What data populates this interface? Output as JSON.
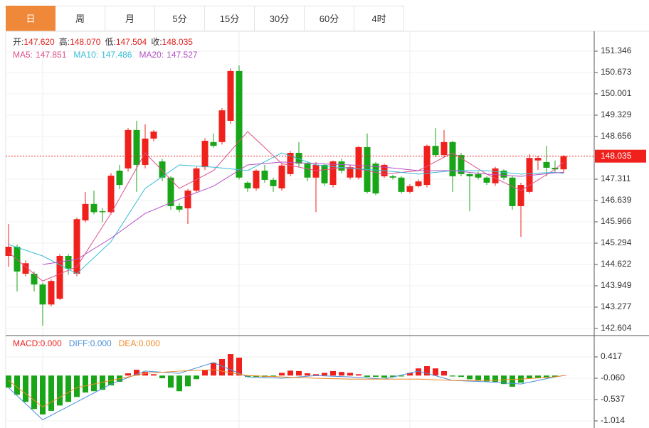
{
  "tabs": [
    "日",
    "周",
    "月",
    "5分",
    "15分",
    "30分",
    "60分",
    "4时"
  ],
  "chart_data": [
    {
      "type": "candlestick",
      "ylim": [
        142.38,
        151.95
      ],
      "yticks": [
        151.346,
        150.673,
        150.001,
        149.329,
        148.656,
        147.311,
        146.639,
        145.966,
        145.294,
        144.622,
        143.949,
        143.277,
        142.604
      ],
      "up_color": "#f0201c",
      "down_color": "#18a518",
      "readout": [
        {
          "name": "开:",
          "value": 147.62,
          "label": "147.620"
        },
        {
          "name": "高:",
          "value": 148.07,
          "label": "148.070"
        },
        {
          "name": "低:",
          "value": 147.504,
          "label": "147.504"
        },
        {
          "name": "收:",
          "value": 148.035,
          "label": "148.035"
        }
      ],
      "last_price": {
        "value": 148.035,
        "label": "148.035",
        "color": "#f0201c"
      },
      "open": [
        144.89,
        145.18,
        144.33,
        144.33,
        143.99,
        143.36,
        143.54,
        144.89,
        144.33,
        146.01,
        146.53,
        146.3,
        146.27,
        147.58,
        147.65,
        148.86,
        147.76,
        148.59,
        147.87,
        147.36,
        146.46,
        146.39,
        146.95,
        147.69,
        148.48,
        148.48,
        149.15,
        150.72,
        147.2,
        147.02,
        147.58,
        147.29,
        147.02,
        147.47,
        148.14,
        147.8,
        147.36,
        147.76,
        147.13,
        147.87,
        147.36,
        147.36,
        148.32,
        147.8,
        147.4,
        147.4,
        147.36,
        146.91,
        147.09,
        147.13,
        148.36,
        148.07,
        148.48,
        148.07,
        147.47,
        147.47,
        147.36,
        147.18,
        147.58,
        147.36,
        146.46,
        146.91,
        147.9,
        147.85,
        147.67,
        147.62
      ],
      "high": [
        145.9,
        145.25,
        144.75,
        144.4,
        144.05,
        144.15,
        144.95,
        144.95,
        146.1,
        146.91,
        146.95,
        146.4,
        147.5,
        147.76,
        148.92,
        149.15,
        149.04,
        148.86,
        147.95,
        147.4,
        146.55,
        147.0,
        147.7,
        148.6,
        148.75,
        149.55,
        150.8,
        150.9,
        147.25,
        147.62,
        147.76,
        147.36,
        147.8,
        148.2,
        148.48,
        147.85,
        147.85,
        147.8,
        147.9,
        147.95,
        147.75,
        148.36,
        148.75,
        147.85,
        147.8,
        147.45,
        147.4,
        147.15,
        147.3,
        148.4,
        148.92,
        148.86,
        148.52,
        148.14,
        147.5,
        147.55,
        147.4,
        147.7,
        147.62,
        147.4,
        147.2,
        148.1,
        148.05,
        148.36,
        147.9,
        148.07
      ],
      "low": [
        144.55,
        143.77,
        144.25,
        143.77,
        142.69,
        143.3,
        143.5,
        144.3,
        144.25,
        145.95,
        146.2,
        145.95,
        146.2,
        147.0,
        147.55,
        146.91,
        147.65,
        148.5,
        147.25,
        146.35,
        146.27,
        145.9,
        146.9,
        147.6,
        148.3,
        148.4,
        149.05,
        147.3,
        146.91,
        146.95,
        147.2,
        146.91,
        146.95,
        147.4,
        147.7,
        147.25,
        146.27,
        147.1,
        147.05,
        147.5,
        147.3,
        147.3,
        146.86,
        146.8,
        147.35,
        147.3,
        146.86,
        146.86,
        147.05,
        147.05,
        148.0,
        148.0,
        146.91,
        147.4,
        146.3,
        147.3,
        147.13,
        147.1,
        147.29,
        146.35,
        145.49,
        146.86,
        147.6,
        147.4,
        147.55,
        147.504
      ],
      "close": [
        145.18,
        144.4,
        144.66,
        143.99,
        143.36,
        144.1,
        144.89,
        144.49,
        146.05,
        146.53,
        146.27,
        146.27,
        147.42,
        147.13,
        148.86,
        147.76,
        148.59,
        148.81,
        147.36,
        146.46,
        146.35,
        146.95,
        147.65,
        148.52,
        148.36,
        149.48,
        150.72,
        147.36,
        147.02,
        147.58,
        147.29,
        147.09,
        147.74,
        148.14,
        147.8,
        147.36,
        147.76,
        147.18,
        147.87,
        147.58,
        147.69,
        148.32,
        146.91,
        146.86,
        147.76,
        147.36,
        146.91,
        147.09,
        147.24,
        148.36,
        148.07,
        148.48,
        147.4,
        147.47,
        147.4,
        147.36,
        147.2,
        147.65,
        147.36,
        146.46,
        147.13,
        147.98,
        147.98,
        147.67,
        147.62,
        148.035
      ],
      "series": [
        {
          "name": "MA5:",
          "color": "#e0508a",
          "last": {
            "value": 147.851,
            "label": "147.851"
          },
          "x": [
            0,
            4,
            8,
            12,
            16,
            20,
            24,
            28,
            32,
            36,
            40,
            44,
            48,
            52,
            56,
            60,
            64,
            65
          ],
          "values": [
            145.0,
            144.1,
            144.55,
            146.23,
            148.14,
            147.02,
            147.58,
            148.81,
            147.8,
            147.58,
            147.69,
            147.47,
            147.58,
            148.14,
            147.47,
            146.95,
            147.62,
            147.851
          ]
        },
        {
          "name": "MA10:",
          "color": "#35bdd6",
          "last": {
            "value": 147.486,
            "label": "147.486"
          },
          "x": [
            0,
            4,
            8,
            12,
            16,
            20,
            24,
            28,
            32,
            36,
            40,
            44,
            48,
            52,
            56,
            60,
            64,
            65
          ],
          "values": [
            145.25,
            144.89,
            144.33,
            145.34,
            147.02,
            147.76,
            147.69,
            147.58,
            148.14,
            147.76,
            147.65,
            147.58,
            147.47,
            147.58,
            147.58,
            147.47,
            147.53,
            147.486
          ]
        },
        {
          "name": "MA20:",
          "color": "#b350c6",
          "last": {
            "value": 147.527,
            "label": "147.527"
          },
          "x": [
            4,
            8,
            12,
            16,
            20,
            24,
            28,
            32,
            36,
            40,
            44,
            48,
            52,
            56,
            60,
            64,
            65
          ],
          "values": [
            144.62,
            144.78,
            145.45,
            146.23,
            146.68,
            147.09,
            147.76,
            147.85,
            147.8,
            147.76,
            147.69,
            147.58,
            147.58,
            147.47,
            147.4,
            147.51,
            147.527
          ]
        }
      ]
    },
    {
      "type": "macd",
      "ylim": [
        -1.173,
        0.894
      ],
      "yticks": [
        0.417,
        {
          "value": -0.06,
          "label": "-0.060"
        },
        -0.537,
        -1.014
      ],
      "histogram": {
        "name": "MACD:",
        "color": "#f0201c",
        "down_color": "#18a518",
        "last": {
          "value": 0,
          "label": "0.000"
        },
        "values": [
          -0.27,
          -0.43,
          -0.59,
          -0.75,
          -0.87,
          -0.79,
          -0.67,
          -0.59,
          -0.48,
          -0.38,
          -0.35,
          -0.32,
          -0.22,
          -0.14,
          0.05,
          0.13,
          0.08,
          0.03,
          -0.06,
          -0.27,
          -0.35,
          -0.24,
          -0.08,
          0.13,
          0.29,
          0.37,
          0.48,
          0.4,
          -0.03,
          -0.03,
          -0.03,
          -0.02,
          0.06,
          0.11,
          0.1,
          0.05,
          0.03,
          0.06,
          0.1,
          0.08,
          0.06,
          0.03,
          -0.03,
          -0.03,
          -0.05,
          -0.03,
          -0.02,
          0.06,
          0.16,
          0.21,
          0.16,
          0.1,
          -0.02,
          -0.03,
          -0.08,
          -0.11,
          -0.13,
          -0.14,
          -0.19,
          -0.25,
          -0.16,
          -0.06,
          -0.05,
          -0.05,
          -0.03,
          0
        ]
      },
      "series": [
        {
          "name": "DIFF:",
          "color": "#4b8fd6",
          "last": {
            "value": 0,
            "label": "0.000"
          },
          "x": [
            0,
            4,
            8,
            12,
            16,
            20,
            24,
            28,
            32,
            36,
            40,
            44,
            48,
            52,
            56,
            60,
            64,
            65
          ],
          "values": [
            -0.27,
            -0.99,
            -0.59,
            -0.19,
            0.1,
            0.05,
            0.29,
            -0.03,
            -0.06,
            0,
            -0.03,
            -0.08,
            0.1,
            -0.11,
            -0.14,
            -0.19,
            -0.03,
            0
          ]
        },
        {
          "name": "DEA:",
          "color": "#f08a24",
          "last": {
            "value": 0,
            "label": "0.000"
          },
          "x": [
            0,
            4,
            8,
            12,
            16,
            20,
            24,
            28,
            32,
            36,
            40,
            44,
            48,
            52,
            56,
            60,
            64,
            65
          ],
          "values": [
            -0.11,
            -0.7,
            -0.27,
            -0.11,
            0.05,
            0.1,
            0.13,
            0,
            -0.03,
            -0.06,
            -0.08,
            -0.08,
            -0.08,
            -0.11,
            -0.11,
            -0.08,
            -0.03,
            0
          ]
        }
      ]
    }
  ]
}
